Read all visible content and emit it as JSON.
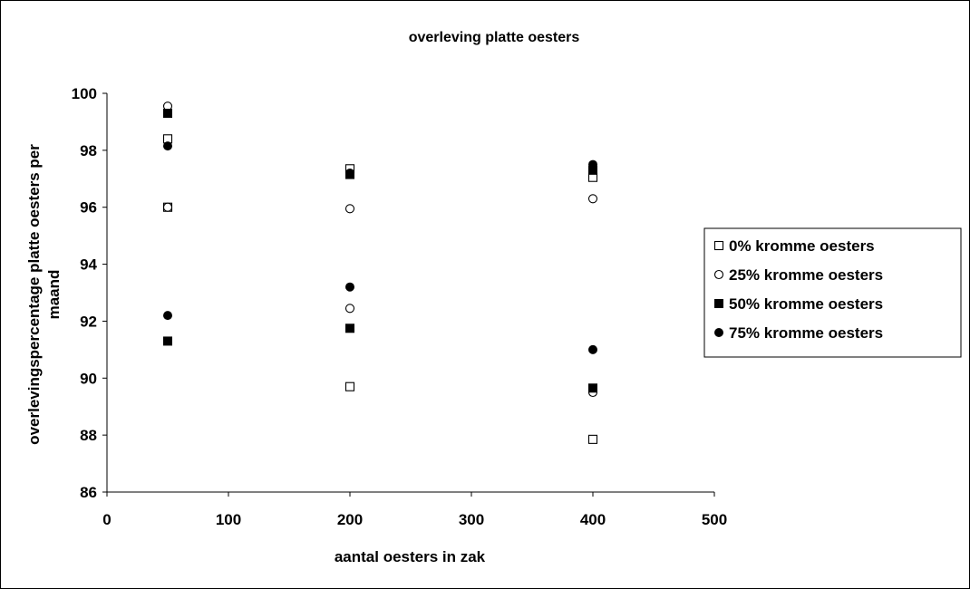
{
  "chart_data": {
    "type": "scatter",
    "title": "overleving platte oesters",
    "xlabel": "aantal oesters in zak",
    "ylabel_lines": [
      "overlevingspercentage platte oesters per",
      "maand"
    ],
    "xlim": [
      0,
      500
    ],
    "ylim": [
      86,
      100
    ],
    "xticks": [
      0,
      100,
      200,
      300,
      400,
      500
    ],
    "yticks": [
      86,
      88,
      90,
      92,
      94,
      96,
      98,
      100
    ],
    "grid": false,
    "legend_position": "right",
    "series": [
      {
        "name": "0% kromme oesters",
        "marker": "square-open",
        "color": "#000000",
        "points": [
          {
            "x": 50,
            "y": 98.4
          },
          {
            "x": 50,
            "y": 96.0
          },
          {
            "x": 200,
            "y": 97.35
          },
          {
            "x": 200,
            "y": 89.7
          },
          {
            "x": 400,
            "y": 97.05
          },
          {
            "x": 400,
            "y": 87.85
          }
        ]
      },
      {
        "name": "25% kromme oesters",
        "marker": "circle-open",
        "color": "#000000",
        "points": [
          {
            "x": 50,
            "y": 99.55
          },
          {
            "x": 50,
            "y": 96.0
          },
          {
            "x": 200,
            "y": 95.95
          },
          {
            "x": 200,
            "y": 92.45
          },
          {
            "x": 400,
            "y": 96.3
          },
          {
            "x": 400,
            "y": 89.5
          }
        ]
      },
      {
        "name": "50% kromme oesters",
        "marker": "square-filled",
        "color": "#000000",
        "points": [
          {
            "x": 50,
            "y": 99.3
          },
          {
            "x": 50,
            "y": 91.3
          },
          {
            "x": 200,
            "y": 97.15
          },
          {
            "x": 200,
            "y": 91.75
          },
          {
            "x": 400,
            "y": 97.3
          },
          {
            "x": 400,
            "y": 89.65
          }
        ]
      },
      {
        "name": "75% kromme oesters",
        "marker": "circle-filled",
        "color": "#000000",
        "points": [
          {
            "x": 50,
            "y": 98.15
          },
          {
            "x": 50,
            "y": 92.2
          },
          {
            "x": 200,
            "y": 97.2
          },
          {
            "x": 200,
            "y": 93.2
          },
          {
            "x": 400,
            "y": 97.5
          },
          {
            "x": 400,
            "y": 91.0
          }
        ]
      }
    ]
  }
}
